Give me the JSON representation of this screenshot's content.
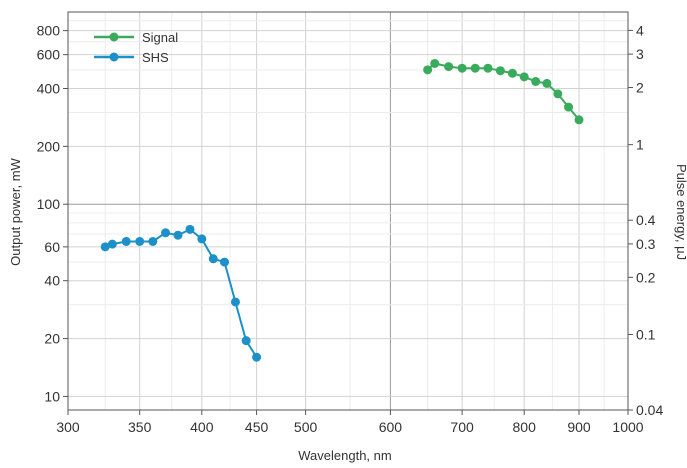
{
  "chart_data": {
    "type": "line",
    "title": "",
    "xlabel": "Wavelength, nm",
    "ylabel": "Output power, mW",
    "y2label": "Pulse energy, μJ",
    "x_scale": "log",
    "y_scale": "log",
    "xlim": [
      300,
      1000
    ],
    "ylim": [
      8.5,
      1000
    ],
    "y2lim": [
      0.04,
      5
    ],
    "grid": true,
    "legend_position": "top-left",
    "x_ticks": [
      "300",
      "350",
      "400",
      "450",
      "500",
      "600",
      "700",
      "800",
      "900",
      "1000"
    ],
    "y_ticks": [
      "10",
      "20",
      "40",
      "60",
      "100",
      "200",
      "400",
      "600",
      "800"
    ],
    "y2_ticks": [
      "0.04",
      "0.1",
      "0.2",
      "0.3",
      "0.4",
      "1",
      "2",
      "3",
      "4"
    ],
    "series": [
      {
        "name": "Signal",
        "color": "#3aaa5c",
        "x": [
          650,
          660,
          680,
          700,
          720,
          740,
          760,
          780,
          800,
          820,
          840,
          860,
          880,
          900
        ],
        "y": [
          500,
          540,
          520,
          510,
          510,
          510,
          495,
          480,
          460,
          435,
          425,
          375,
          320,
          275
        ]
      },
      {
        "name": "SHS",
        "color": "#1e90c8",
        "x": [
          325,
          330,
          340,
          350,
          360,
          370,
          380,
          390,
          400,
          410,
          420,
          430,
          440,
          450
        ],
        "y": [
          60,
          62,
          64,
          64,
          64,
          71,
          69,
          74,
          66,
          52,
          50,
          31,
          19.5,
          16
        ]
      }
    ]
  }
}
